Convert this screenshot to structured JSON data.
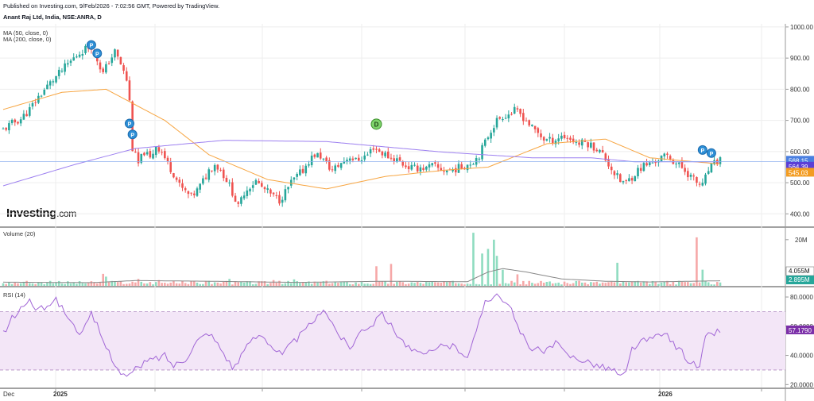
{
  "header": {
    "published": "Published on Investing.com, 9/Feb/2026 - 7:02:56 GMT, Powered by TradingView.",
    "symbol": "Anant Raj Ltd, India, NSE:ANRA, D"
  },
  "indicators": {
    "ma50": "MA (50, close, 0)",
    "ma200": "MA (200, close, 0)",
    "volume": "Volume (20)",
    "rsi": "RSI (14)"
  },
  "logo": {
    "main": "Investing",
    "suffix": ".com"
  },
  "colors": {
    "up": "#26a69a",
    "down": "#ef5350",
    "ma50": "#f7a541",
    "ma200": "#9c7ff0",
    "vol_up": "#8fdcc0",
    "vol_down": "#f6a8a8",
    "rsi_line": "#a166d6",
    "rsi_band": "#f3e6f7",
    "last_price": "#4a7fe0",
    "ma200_tag": "#5b3fd6",
    "ma50_tag": "#f39c21",
    "vol_tag": "#26a69a"
  },
  "chart_data": {
    "type": "candlestick",
    "x_labels": [
      "Dec",
      "2025",
      "2026"
    ],
    "price_axis": {
      "ticks": [
        400,
        500,
        600,
        700,
        800,
        900,
        1000
      ],
      "labels": [
        "400.00",
        "500.00",
        "600.00",
        "700.00",
        "800.00",
        "900.00",
        "1000.00"
      ],
      "range": [
        360,
        1010
      ]
    },
    "price_anchors": [
      [
        0,
        670
      ],
      [
        3,
        690
      ],
      [
        6,
        705
      ],
      [
        9,
        735
      ],
      [
        12,
        775
      ],
      [
        15,
        810
      ],
      [
        18,
        840
      ],
      [
        21,
        870
      ],
      [
        24,
        900
      ],
      [
        27,
        925
      ],
      [
        30,
        940
      ],
      [
        32,
        895
      ],
      [
        34,
        850
      ],
      [
        36,
        890
      ],
      [
        38,
        920
      ],
      [
        40,
        880
      ],
      [
        42,
        830
      ],
      [
        43,
        760
      ],
      [
        44,
        610
      ],
      [
        46,
        560
      ],
      [
        48,
        600
      ],
      [
        50,
        575
      ],
      [
        52,
        620
      ],
      [
        54,
        600
      ],
      [
        56,
        560
      ],
      [
        58,
        530
      ],
      [
        60,
        490
      ],
      [
        62,
        470
      ],
      [
        64,
        455
      ],
      [
        66,
        475
      ],
      [
        68,
        505
      ],
      [
        70,
        540
      ],
      [
        72,
        560
      ],
      [
        74,
        540
      ],
      [
        76,
        510
      ],
      [
        78,
        470
      ],
      [
        80,
        420
      ],
      [
        82,
        470
      ],
      [
        84,
        490
      ],
      [
        86,
        505
      ],
      [
        88,
        485
      ],
      [
        90,
        470
      ],
      [
        92,
        455
      ],
      [
        94,
        445
      ],
      [
        96,
        470
      ],
      [
        98,
        500
      ],
      [
        100,
        520
      ],
      [
        102,
        540
      ],
      [
        104,
        570
      ],
      [
        106,
        590
      ],
      [
        108,
        585
      ],
      [
        110,
        560
      ],
      [
        112,
        540
      ],
      [
        114,
        555
      ],
      [
        116,
        570
      ],
      [
        118,
        585
      ],
      [
        120,
        570
      ],
      [
        122,
        580
      ],
      [
        124,
        590
      ],
      [
        126,
        615
      ],
      [
        128,
        600
      ],
      [
        130,
        590
      ],
      [
        132,
        580
      ],
      [
        134,
        575
      ],
      [
        136,
        560
      ],
      [
        138,
        550
      ],
      [
        140,
        545
      ],
      [
        142,
        550
      ],
      [
        144,
        545
      ],
      [
        146,
        555
      ],
      [
        148,
        545
      ],
      [
        150,
        540
      ],
      [
        152,
        540
      ],
      [
        154,
        545
      ],
      [
        156,
        550
      ],
      [
        158,
        560
      ],
      [
        160,
        570
      ],
      [
        162,
        590
      ],
      [
        164,
        630
      ],
      [
        166,
        670
      ],
      [
        168,
        700
      ],
      [
        170,
        715
      ],
      [
        172,
        720
      ],
      [
        174,
        730
      ],
      [
        176,
        720
      ],
      [
        178,
        700
      ],
      [
        180,
        675
      ],
      [
        182,
        660
      ],
      [
        184,
        640
      ],
      [
        186,
        635
      ],
      [
        188,
        640
      ],
      [
        190,
        650
      ],
      [
        192,
        645
      ],
      [
        194,
        635
      ],
      [
        196,
        625
      ],
      [
        198,
        630
      ],
      [
        200,
        620
      ],
      [
        202,
        610
      ],
      [
        204,
        590
      ],
      [
        206,
        560
      ],
      [
        208,
        530
      ],
      [
        210,
        505
      ],
      [
        212,
        500
      ],
      [
        214,
        520
      ],
      [
        216,
        540
      ],
      [
        218,
        555
      ],
      [
        220,
        560
      ],
      [
        222,
        570
      ],
      [
        224,
        580
      ],
      [
        226,
        585
      ],
      [
        228,
        570
      ],
      [
        230,
        555
      ],
      [
        232,
        540
      ],
      [
        234,
        520
      ],
      [
        236,
        500
      ],
      [
        238,
        490
      ],
      [
        240,
        540
      ],
      [
        242,
        560
      ],
      [
        244,
        575
      ]
    ],
    "ma50_anchors": [
      [
        0,
        735
      ],
      [
        20,
        790
      ],
      [
        35,
        800
      ],
      [
        55,
        700
      ],
      [
        70,
        590
      ],
      [
        90,
        510
      ],
      [
        110,
        480
      ],
      [
        130,
        520
      ],
      [
        150,
        540
      ],
      [
        165,
        550
      ],
      [
        185,
        625
      ],
      [
        205,
        640
      ],
      [
        220,
        580
      ],
      [
        244,
        560
      ]
    ],
    "ma200_anchors": [
      [
        0,
        490
      ],
      [
        25,
        560
      ],
      [
        45,
        610
      ],
      [
        75,
        636
      ],
      [
        110,
        632
      ],
      [
        150,
        598
      ],
      [
        180,
        580
      ],
      [
        200,
        580
      ],
      [
        215,
        567
      ],
      [
        244,
        567
      ]
    ],
    "last_price": {
      "value": "568.15",
      "ma200": "564.39",
      "ma50": "545.03"
    },
    "markers": [
      {
        "label": "P",
        "x": 30,
        "price": 942
      },
      {
        "label": "P",
        "x": 32,
        "price": 915
      },
      {
        "label": "P",
        "x": 43,
        "price": 690
      },
      {
        "label": "P",
        "x": 44,
        "price": 655
      },
      {
        "label": "D",
        "x": 127,
        "price": 688
      },
      {
        "label": "P",
        "x": 238,
        "price": 605
      },
      {
        "label": "P",
        "x": 241,
        "price": 595
      }
    ],
    "volume": {
      "axis_label": "20M",
      "max": 22,
      "avg_tag": "4.055M",
      "last_tag": "2.895M",
      "spikes": [
        [
          34,
          5.2
        ],
        [
          35,
          4.0
        ],
        [
          46,
          3.0
        ],
        [
          53,
          2.5
        ],
        [
          70,
          2.2
        ],
        [
          77,
          3.0
        ],
        [
          92,
          2.5
        ],
        [
          99,
          2.8
        ],
        [
          127,
          8.5
        ],
        [
          132,
          9.5
        ],
        [
          160,
          23
        ],
        [
          163,
          14
        ],
        [
          165,
          16
        ],
        [
          167,
          20
        ],
        [
          168,
          13
        ],
        [
          170,
          7
        ],
        [
          175,
          5
        ],
        [
          209,
          10
        ],
        [
          236,
          21
        ],
        [
          238,
          7
        ]
      ]
    },
    "rsi": {
      "ticks": [
        20,
        40,
        60,
        80
      ],
      "labels": [
        "20.0000",
        "40.0000",
        "60.0000",
        "80.0000"
      ],
      "range": [
        18,
        86
      ],
      "band": [
        30,
        70
      ],
      "last_tag": "57.1790",
      "anchors": [
        [
          0,
          55
        ],
        [
          3,
          65
        ],
        [
          6,
          72
        ],
        [
          9,
          78
        ],
        [
          12,
          70
        ],
        [
          15,
          75
        ],
        [
          18,
          78
        ],
        [
          21,
          70
        ],
        [
          24,
          60
        ],
        [
          27,
          55
        ],
        [
          30,
          68
        ],
        [
          32,
          60
        ],
        [
          34,
          50
        ],
        [
          36,
          42
        ],
        [
          38,
          35
        ],
        [
          40,
          28
        ],
        [
          42,
          25
        ],
        [
          45,
          30
        ],
        [
          48,
          35
        ],
        [
          52,
          38
        ],
        [
          55,
          40
        ],
        [
          58,
          33
        ],
        [
          62,
          38
        ],
        [
          66,
          50
        ],
        [
          70,
          56
        ],
        [
          74,
          45
        ],
        [
          78,
          32
        ],
        [
          80,
          35
        ],
        [
          84,
          50
        ],
        [
          88,
          55
        ],
        [
          92,
          45
        ],
        [
          95,
          40
        ],
        [
          98,
          48
        ],
        [
          102,
          55
        ],
        [
          106,
          65
        ],
        [
          110,
          70
        ],
        [
          114,
          55
        ],
        [
          118,
          45
        ],
        [
          122,
          58
        ],
        [
          126,
          62
        ],
        [
          128,
          70
        ],
        [
          130,
          66
        ],
        [
          134,
          55
        ],
        [
          138,
          45
        ],
        [
          142,
          40
        ],
        [
          146,
          42
        ],
        [
          150,
          48
        ],
        [
          154,
          45
        ],
        [
          158,
          40
        ],
        [
          161,
          55
        ],
        [
          164,
          78
        ],
        [
          166,
          80
        ],
        [
          168,
          82
        ],
        [
          170,
          79
        ],
        [
          173,
          70
        ],
        [
          176,
          55
        ],
        [
          180,
          45
        ],
        [
          184,
          42
        ],
        [
          188,
          48
        ],
        [
          192,
          40
        ],
        [
          196,
          38
        ],
        [
          200,
          35
        ],
        [
          204,
          32
        ],
        [
          208,
          30
        ],
        [
          210,
          25
        ],
        [
          212,
          28
        ],
        [
          214,
          45
        ],
        [
          218,
          50
        ],
        [
          222,
          52
        ],
        [
          226,
          55
        ],
        [
          228,
          48
        ],
        [
          231,
          42
        ],
        [
          234,
          35
        ],
        [
          237,
          32
        ],
        [
          239,
          52
        ],
        [
          241,
          55
        ],
        [
          244,
          57
        ]
      ]
    }
  }
}
